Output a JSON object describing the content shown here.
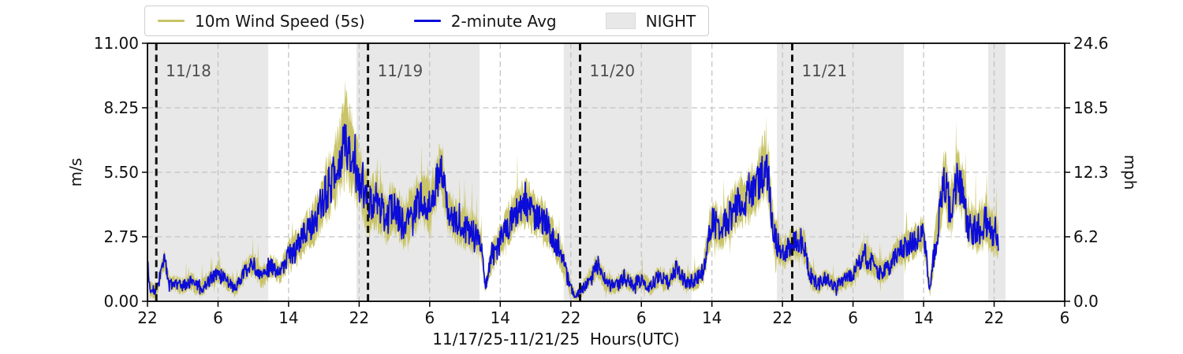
{
  "chart_data": {
    "type": "line",
    "xlabel": "11/17/25-11/21/25  Hours(UTC)",
    "ylabel_left": "m/s",
    "ylabel_right": "mph",
    "x_unit": "hours since 22:00 UTC on 11/17/25",
    "x_range_hours": [
      0,
      104
    ],
    "ylim_left": [
      0,
      11.0
    ],
    "ylim_right": [
      0,
      24.6
    ],
    "grid": true,
    "legend_position": "top-left, outside axes",
    "legend": [
      {
        "label": "10m Wind Speed (5s)",
        "color": "#c9c468",
        "type": "line"
      },
      {
        "label": "2-minute Avg",
        "color": "#0c0cd9",
        "type": "line"
      },
      {
        "label": "NIGHT",
        "color": "#e8e8e8",
        "type": "patch"
      }
    ],
    "colors": {
      "wind_5s": "#c9c468",
      "avg_2min": "#0c0cd9",
      "night": "#e8e8e8",
      "grid": "#c3c3c3",
      "day_line": "#111111",
      "day_label": "#4f4f4f",
      "axis": "#000000"
    },
    "xticks": [
      {
        "t": 0,
        "label": "22"
      },
      {
        "t": 8,
        "label": "6"
      },
      {
        "t": 16,
        "label": "14"
      },
      {
        "t": 24,
        "label": "22"
      },
      {
        "t": 32,
        "label": "6"
      },
      {
        "t": 40,
        "label": "14"
      },
      {
        "t": 48,
        "label": "22"
      },
      {
        "t": 56,
        "label": "6"
      },
      {
        "t": 64,
        "label": "14"
      },
      {
        "t": 72,
        "label": "22"
      },
      {
        "t": 80,
        "label": "6"
      },
      {
        "t": 88,
        "label": "14"
      },
      {
        "t": 96,
        "label": "22"
      },
      {
        "t": 104,
        "label": "6"
      }
    ],
    "yticks_left": [
      {
        "v": 0,
        "label": "0.00"
      },
      {
        "v": 2.75,
        "label": "2.75"
      },
      {
        "v": 5.5,
        "label": "5.50"
      },
      {
        "v": 8.25,
        "label": "8.25"
      },
      {
        "v": 11.0,
        "label": "11.00"
      }
    ],
    "yticks_right": [
      {
        "v": 0,
        "label": "0.0"
      },
      {
        "v": 2.75,
        "label": "6.2"
      },
      {
        "v": 5.5,
        "label": "12.3"
      },
      {
        "v": 8.25,
        "label": "18.5"
      },
      {
        "v": 11.0,
        "label": "24.6"
      }
    ],
    "day_markers": [
      {
        "t": 1.0,
        "label": "11/18"
      },
      {
        "t": 25.0,
        "label": "11/19"
      },
      {
        "t": 49.05,
        "label": "11/20"
      },
      {
        "t": 73.1,
        "label": "11/21"
      }
    ],
    "night_spans_hours": [
      [
        0,
        13.7
      ],
      [
        23.7,
        37.66
      ],
      [
        47.2,
        61.7
      ],
      [
        71.37,
        85.77
      ],
      [
        95.33,
        97.3
      ]
    ],
    "data_end_hour": 96.5,
    "series": [
      {
        "name": "2-minute Avg (m/s), hourly keyframes read from chart",
        "color": "#0c0cd9",
        "t": [
          0,
          0.3,
          1,
          1.9,
          2.5,
          3,
          4,
          5,
          6,
          7,
          8,
          9,
          10,
          11,
          12,
          13,
          14,
          15,
          16,
          17,
          18,
          19,
          20,
          21,
          22,
          22.4,
          23,
          24,
          25,
          26,
          27,
          28,
          29,
          30,
          31,
          32,
          33,
          33.4,
          34,
          35,
          36,
          37,
          37.8,
          38.3,
          39,
          40,
          41,
          42,
          43,
          44,
          45,
          46,
          47,
          48,
          48.6,
          49,
          50,
          51,
          52,
          53,
          54,
          55,
          56,
          57,
          58,
          59,
          60,
          61,
          62,
          63,
          63.6,
          64,
          65,
          66,
          67,
          68,
          69,
          70,
          70.4,
          71,
          72,
          73,
          74,
          74.5,
          75,
          76,
          77,
          78,
          79,
          80,
          81,
          82,
          83,
          84,
          85,
          86,
          87,
          88,
          88.7,
          89,
          90,
          90.4,
          91,
          91.8,
          92.5,
          93,
          94,
          95,
          96,
          96.5
        ],
        "values": [
          1.9,
          0.5,
          0.4,
          1.8,
          0.7,
          0.8,
          0.6,
          0.9,
          0.5,
          0.9,
          1.2,
          0.9,
          0.5,
          1.3,
          1.6,
          1.0,
          1.5,
          1.2,
          2.0,
          2.3,
          3.0,
          3.4,
          4.5,
          5.2,
          6.2,
          7.3,
          6.4,
          5.2,
          4.0,
          4.3,
          3.6,
          4.0,
          3.2,
          3.8,
          4.4,
          4.0,
          5.3,
          5.5,
          3.9,
          3.4,
          3.1,
          2.9,
          2.5,
          0.6,
          1.8,
          2.6,
          3.3,
          4.0,
          4.1,
          3.7,
          3.4,
          2.7,
          1.8,
          0.5,
          0.2,
          0.4,
          0.9,
          1.5,
          0.8,
          0.6,
          1.0,
          0.7,
          0.9,
          0.6,
          1.1,
          0.8,
          1.4,
          0.8,
          0.9,
          1.3,
          2.6,
          3.4,
          3.0,
          3.6,
          4.2,
          4.4,
          4.8,
          5.8,
          5.3,
          2.8,
          2.0,
          2.4,
          2.5,
          2.3,
          1.2,
          0.7,
          1.0,
          0.6,
          0.9,
          1.1,
          1.9,
          1.7,
          1.2,
          1.4,
          2.1,
          2.3,
          2.6,
          2.9,
          0.5,
          1.5,
          4.2,
          5.2,
          3.8,
          5.2,
          4.6,
          3.3,
          3.0,
          3.4,
          2.8,
          2.7
        ]
      },
      {
        "name": "10m Wind Speed 5s gust/lull envelope half-width (m/s) about the 2-minute average",
        "color": "#c9c468",
        "t": [
          0,
          0.3,
          1,
          1.9,
          2.5,
          3,
          4,
          5,
          6,
          7,
          8,
          9,
          10,
          11,
          12,
          13,
          14,
          15,
          16,
          17,
          18,
          19,
          20,
          21,
          22,
          22.4,
          23,
          24,
          25,
          26,
          27,
          28,
          29,
          30,
          31,
          32,
          33,
          33.4,
          34,
          35,
          36,
          37,
          37.8,
          38.3,
          39,
          40,
          41,
          42,
          43,
          44,
          45,
          46,
          47,
          48,
          48.6,
          49,
          50,
          51,
          52,
          53,
          54,
          55,
          56,
          57,
          58,
          59,
          60,
          61,
          62,
          63,
          63.6,
          64,
          65,
          66,
          67,
          68,
          69,
          70,
          70.4,
          71,
          72,
          73,
          74,
          74.5,
          75,
          76,
          77,
          78,
          79,
          80,
          81,
          82,
          83,
          84,
          85,
          86,
          87,
          88,
          88.7,
          89,
          90,
          90.4,
          91,
          91.8,
          92.5,
          93,
          94,
          95,
          96,
          96.5
        ],
        "values": [
          0.6,
          0.4,
          0.35,
          0.5,
          0.4,
          0.4,
          0.4,
          0.45,
          0.4,
          0.45,
          0.5,
          0.45,
          0.4,
          0.5,
          0.55,
          0.5,
          0.55,
          0.5,
          0.7,
          0.8,
          0.9,
          1.0,
          1.4,
          1.6,
          1.9,
          2.4,
          1.9,
          1.6,
          1.4,
          1.3,
          1.2,
          1.2,
          1.1,
          1.2,
          1.25,
          1.2,
          1.3,
          1.3,
          1.1,
          1.0,
          1.0,
          0.95,
          0.7,
          0.35,
          0.8,
          0.9,
          1.0,
          1.1,
          1.1,
          1.0,
          0.95,
          0.9,
          0.8,
          0.4,
          0.2,
          0.3,
          0.5,
          0.6,
          0.5,
          0.45,
          0.5,
          0.45,
          0.5,
          0.45,
          0.5,
          0.45,
          0.55,
          0.5,
          0.5,
          0.6,
          1.0,
          1.1,
          1.0,
          1.1,
          1.2,
          1.2,
          1.3,
          1.6,
          1.5,
          1.0,
          0.7,
          0.8,
          0.85,
          0.8,
          0.6,
          0.45,
          0.5,
          0.4,
          0.5,
          0.5,
          0.7,
          0.65,
          0.55,
          0.6,
          0.7,
          0.75,
          0.8,
          0.85,
          0.4,
          0.7,
          1.3,
          1.5,
          1.2,
          1.5,
          1.4,
          1.2,
          1.1,
          1.2,
          1.0,
          0.9
        ]
      }
    ]
  }
}
